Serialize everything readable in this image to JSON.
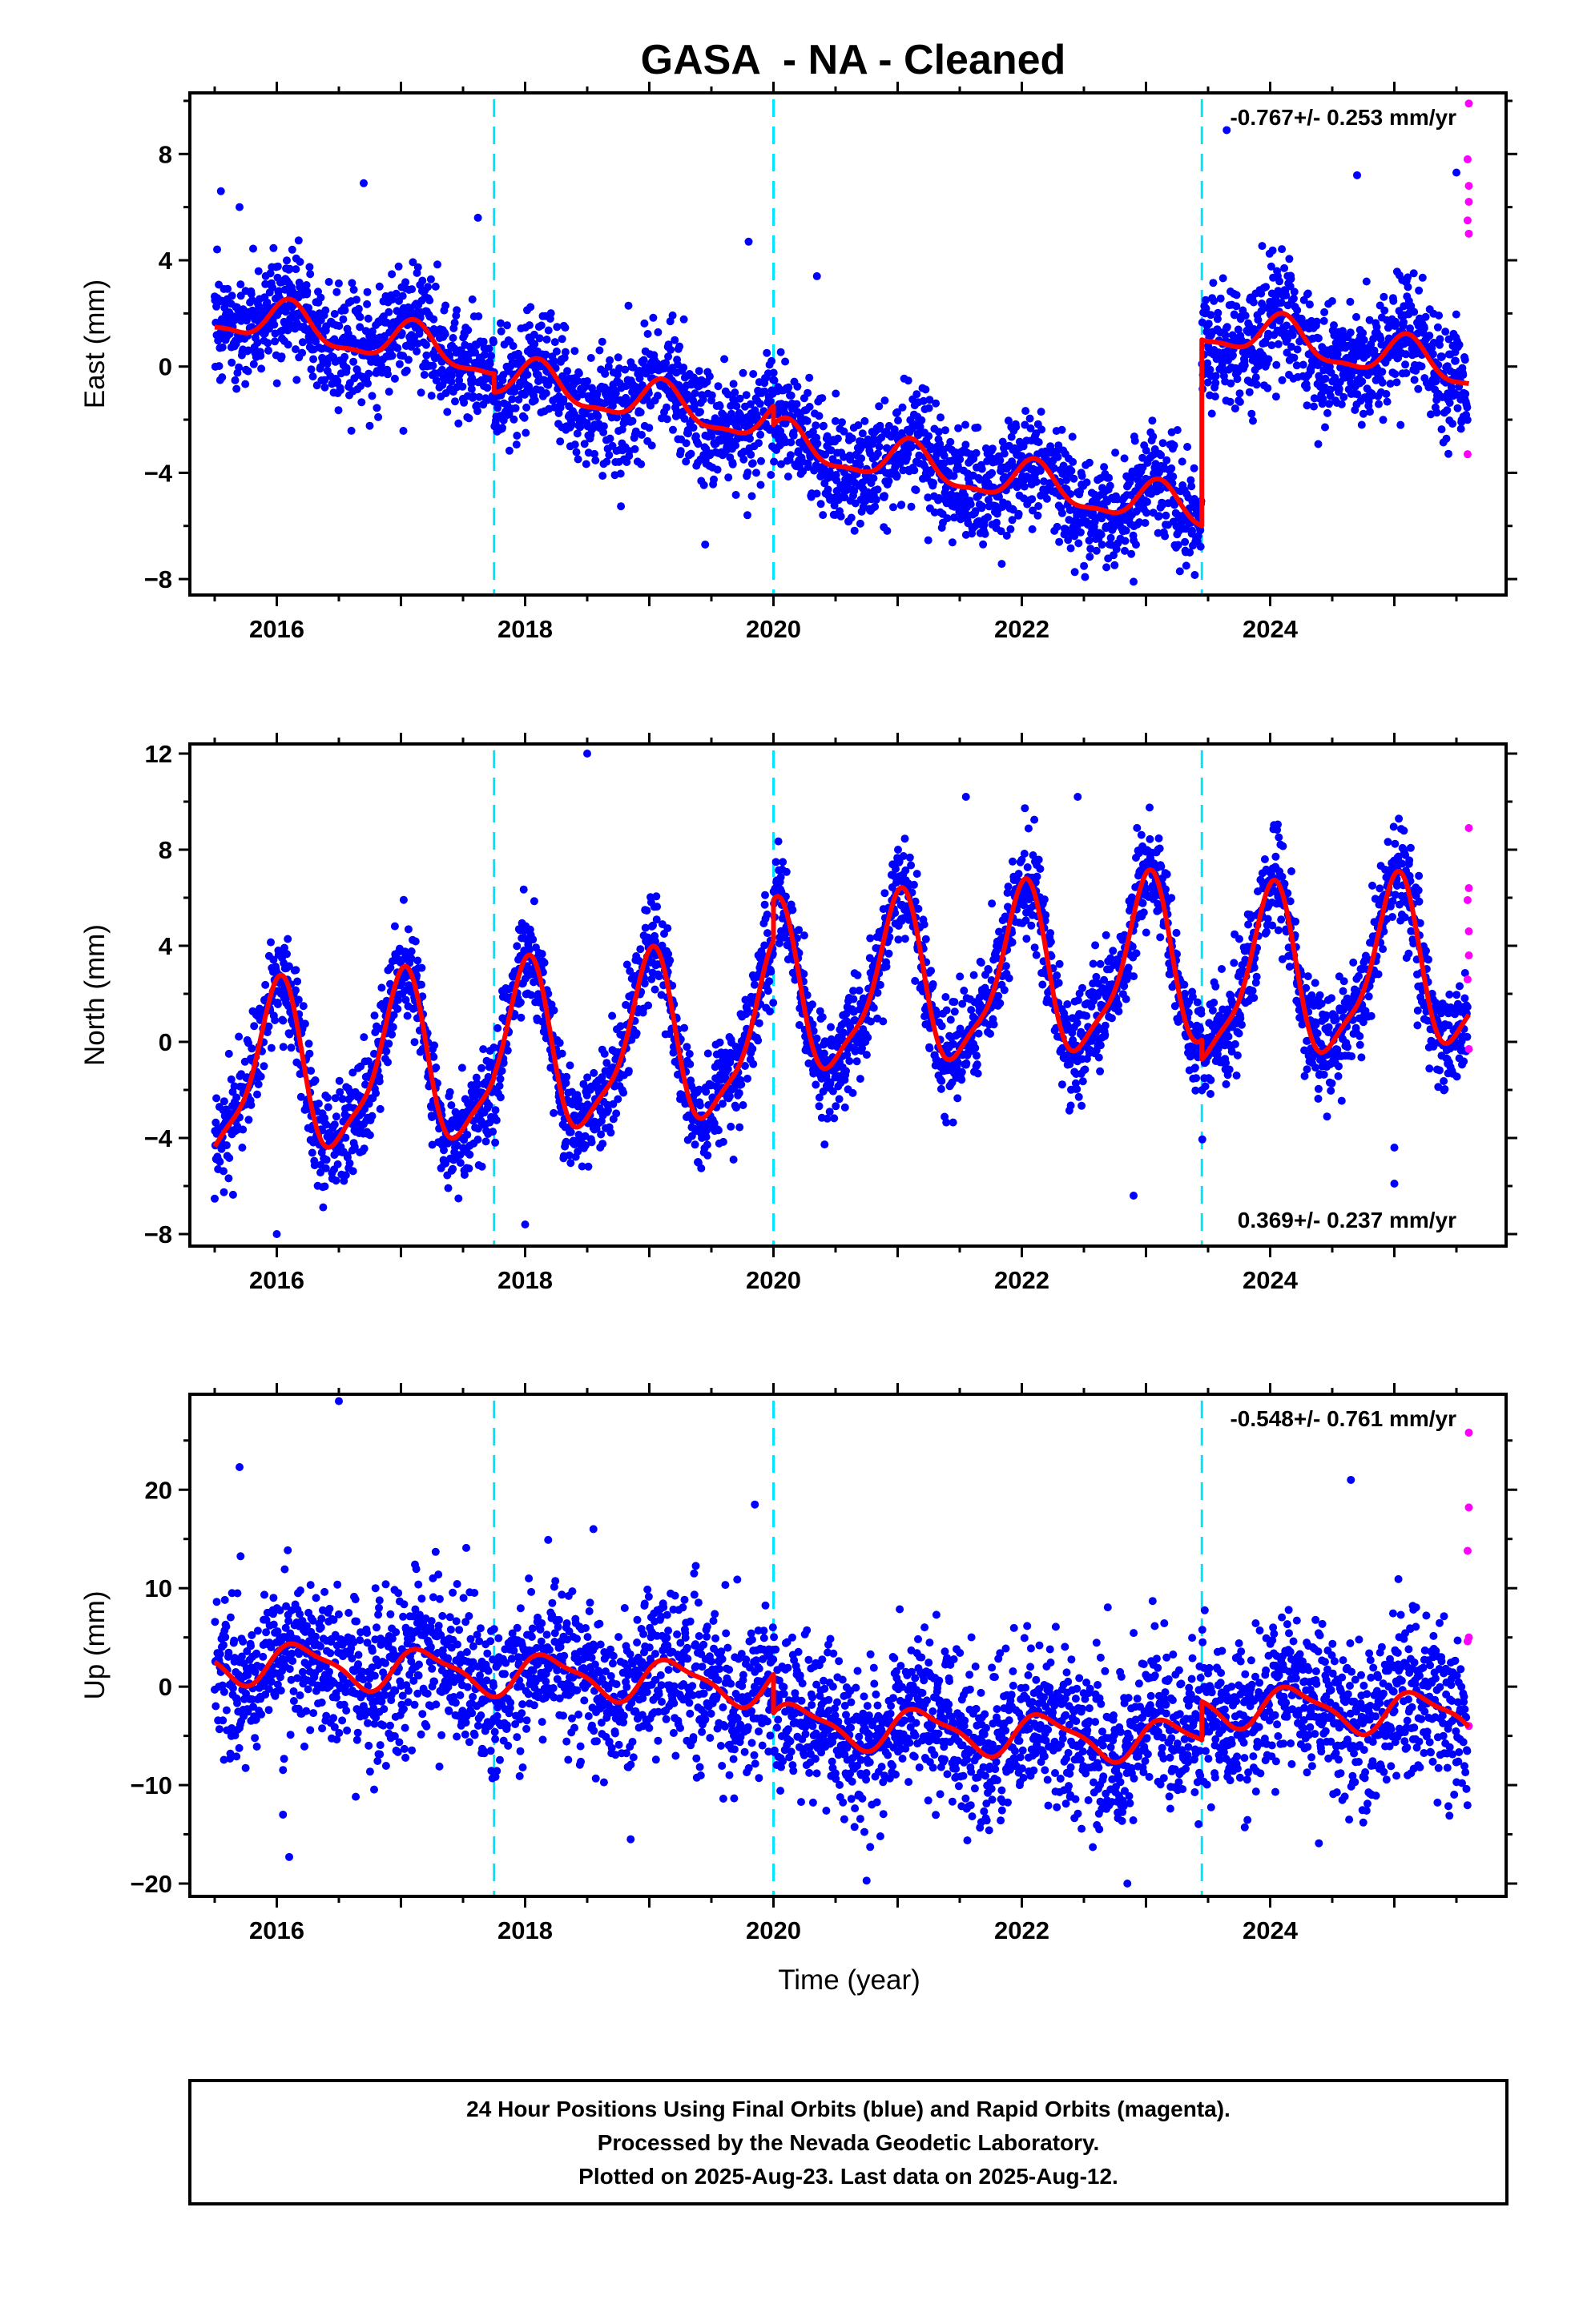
{
  "title": "GASA  - NA - Cleaned",
  "xlabel": "Time (year)",
  "footer": {
    "line1": "24 Hour Positions Using Final Orbits (blue) and Rapid Orbits (magenta).",
    "line2": "Processed by the Nevada Geodetic Laboratory.",
    "line3": "Plotted on 2025-Aug-23. Last data on 2025-Aug-12."
  },
  "colors": {
    "final_orbits": "#0000ff",
    "rapid_orbits": "#ff00ff",
    "model_fit": "#ff0000",
    "equipment_change": "#00e5ff",
    "frame": "#000000"
  },
  "chart_data": [
    {
      "type": "scatter",
      "component": "east",
      "ylabel": "East (mm)",
      "rate": "-0.767+/- 0.253 mm/yr",
      "rate_position": "top-right",
      "xlim": [
        2015.3,
        2025.9
      ],
      "ylim": [
        -8.6,
        10.3
      ],
      "xticks": [
        2016,
        2018,
        2020,
        2022,
        2024
      ],
      "yticks": [
        -8,
        -4,
        0,
        4,
        8
      ],
      "grid": false,
      "breaks": [
        2017.75,
        2020.0,
        2023.45
      ],
      "fit": {
        "name": "model",
        "segments": [
          {
            "start": 2015.5,
            "end": 2017.75,
            "offset": 2.0
          },
          {
            "start": 2017.75,
            "end": 2020.0,
            "offset": 1.3
          },
          {
            "start": 2020.0,
            "end": 2023.45,
            "offset": 0.6
          },
          {
            "start": 2023.45,
            "end": 2025.6,
            "offset": 7.6
          }
        ],
        "rate": -0.767,
        "annual_amp": 0.75,
        "annual_phase": 0.9,
        "semiannual_amp": 0.25,
        "semiannual_phase": 0.3,
        "scatter_sd": 1.05
      },
      "final_points": [
        [
          2015.55,
          6.6
        ],
        [
          2015.7,
          6.0
        ],
        [
          2016.7,
          6.9
        ],
        [
          2017.62,
          5.6
        ],
        [
          2019.45,
          -6.7
        ],
        [
          2019.8,
          4.7
        ],
        [
          2020.35,
          3.4
        ],
        [
          2022.9,
          -8.1
        ],
        [
          2023.65,
          8.9
        ],
        [
          2024.7,
          7.2
        ],
        [
          2025.05,
          -2.2
        ],
        [
          2025.5,
          7.3
        ]
      ],
      "rapid_points": [
        [
          2025.6,
          9.9
        ],
        [
          2025.59,
          7.8
        ],
        [
          2025.6,
          6.8
        ],
        [
          2025.6,
          6.2
        ],
        [
          2025.59,
          5.5
        ],
        [
          2025.6,
          5.0
        ],
        [
          2025.59,
          -3.3
        ]
      ]
    },
    {
      "type": "scatter",
      "component": "north",
      "ylabel": "North (mm)",
      "rate": "0.369+/- 0.237 mm/yr",
      "rate_position": "bottom-right",
      "xlim": [
        2015.3,
        2025.9
      ],
      "ylim": [
        -8.5,
        12.4
      ],
      "xticks": [
        2016,
        2018,
        2020,
        2022,
        2024
      ],
      "yticks": [
        -8,
        -4,
        0,
        4,
        8,
        12
      ],
      "grid": false,
      "breaks": [
        2017.75,
        2020.0,
        2023.45
      ],
      "fit": {
        "name": "model",
        "segments": [
          {
            "start": 2015.5,
            "end": 2017.75,
            "offset": -1.6
          },
          {
            "start": 2017.75,
            "end": 2020.0,
            "offset": -1.5
          },
          {
            "start": 2020.0,
            "end": 2023.45,
            "offset": 0.2
          },
          {
            "start": 2023.45,
            "end": 2025.6,
            "offset": -0.6
          }
        ],
        "rate": 0.369,
        "annual_amp": 3.4,
        "annual_phase": 1.55,
        "semiannual_amp": 0.9,
        "semiannual_phase": 0.8,
        "scatter_sd": 1.05
      },
      "final_points": [
        [
          2018.5,
          12.0
        ],
        [
          2021.55,
          10.2
        ],
        [
          2022.45,
          10.2
        ],
        [
          2025.0,
          -4.4
        ],
        [
          2025.0,
          -5.9
        ],
        [
          2022.9,
          -6.4
        ],
        [
          2016.0,
          -8.0
        ],
        [
          2018.0,
          -7.6
        ]
      ],
      "rapid_points": [
        [
          2025.6,
          8.9
        ],
        [
          2025.6,
          6.4
        ],
        [
          2025.59,
          5.9
        ],
        [
          2025.6,
          4.6
        ],
        [
          2025.6,
          3.6
        ],
        [
          2025.59,
          2.6
        ],
        [
          2025.6,
          -0.3
        ]
      ]
    },
    {
      "type": "scatter",
      "component": "up",
      "ylabel": "Up (mm)",
      "rate": "-0.548+/- 0.761 mm/yr",
      "rate_position": "top-right",
      "xlim": [
        2015.3,
        2025.9
      ],
      "ylim": [
        -21.3,
        29.7
      ],
      "xticks": [
        2016,
        2018,
        2020,
        2022,
        2024
      ],
      "yticks": [
        -20,
        -10,
        0,
        10,
        20
      ],
      "grid": false,
      "breaks": [
        2017.75,
        2020.0,
        2023.45
      ],
      "fit": {
        "name": "model",
        "segments": [
          {
            "start": 2015.5,
            "end": 2017.75,
            "offset": 2.6
          },
          {
            "start": 2017.75,
            "end": 2020.0,
            "offset": 2.6
          },
          {
            "start": 2020.0,
            "end": 2023.45,
            "offset": -1.3
          },
          {
            "start": 2023.45,
            "end": 2025.6,
            "offset": 2.6
          }
        ],
        "rate": -0.548,
        "annual_amp": 2.0,
        "annual_phase": 0.3,
        "semiannual_amp": 0.6,
        "semiannual_phase": 1.0,
        "scatter_sd": 4.0
      },
      "final_points": [
        [
          2016.5,
          29.0
        ],
        [
          2015.7,
          22.3
        ],
        [
          2018.55,
          16.0
        ],
        [
          2024.65,
          21.0
        ],
        [
          2016.1,
          -17.3
        ],
        [
          2016.05,
          -13.0
        ],
        [
          2018.85,
          -15.5
        ],
        [
          2022.85,
          -20.0
        ],
        [
          2020.75,
          -19.7
        ],
        [
          2024.75,
          -13.8
        ],
        [
          2019.85,
          18.5
        ]
      ],
      "rapid_points": [
        [
          2025.6,
          25.8
        ],
        [
          2025.6,
          18.2
        ],
        [
          2025.59,
          13.8
        ],
        [
          2025.6,
          5.0
        ],
        [
          2025.59,
          4.6
        ],
        [
          2025.6,
          -4.0
        ]
      ]
    }
  ]
}
